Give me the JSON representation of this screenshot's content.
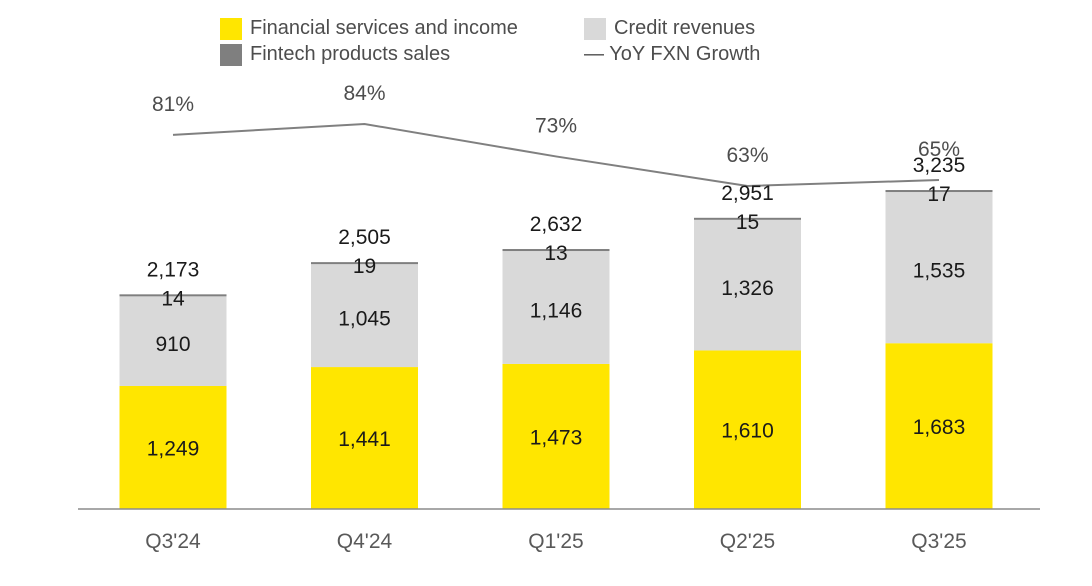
{
  "chart_data": {
    "type": "bar",
    "stacked": true,
    "categories": [
      "Q3'24",
      "Q4'24",
      "Q1'25",
      "Q2'25",
      "Q3'25"
    ],
    "series": [
      {
        "name": "Financial services and income",
        "values": [
          1249,
          1441,
          1473,
          1610,
          1683
        ],
        "labels": [
          "1,249",
          "1,441",
          "1,473",
          "1,610",
          "1,683"
        ],
        "color": "#FFE600"
      },
      {
        "name": "Credit revenues",
        "values": [
          910,
          1045,
          1146,
          1326,
          1535
        ],
        "labels": [
          "910",
          "1,045",
          "1,146",
          "1,326",
          "1,535"
        ],
        "color": "#D9D9D9"
      },
      {
        "name": "Fintech products sales",
        "values": [
          14,
          19,
          13,
          15,
          17
        ],
        "labels": [
          "14",
          "19",
          "13",
          "15",
          "17"
        ],
        "color": "#7F7F7F"
      }
    ],
    "totals": [
      2173,
      2505,
      2632,
      2951,
      3235
    ],
    "total_labels": [
      "2,173",
      "2,505",
      "2,632",
      "2,951",
      "3,235"
    ],
    "line_series": {
      "name": "YoY FXN Growth",
      "values": [
        81,
        84,
        73,
        63,
        65
      ],
      "labels": [
        "81%",
        "84%",
        "73%",
        "63%",
        "65%"
      ],
      "color": "#808080"
    },
    "legend": [
      {
        "label": "Financial services and income",
        "kind": "swatch",
        "color": "#FFE600"
      },
      {
        "label": "Credit revenues",
        "kind": "swatch",
        "color": "#D9D9D9"
      },
      {
        "label": "Fintech products sales",
        "kind": "swatch",
        "color": "#7F7F7F"
      },
      {
        "label": "— YoY FXN Growth",
        "kind": "line",
        "color": "#808080"
      }
    ],
    "title": "",
    "xlabel": "",
    "ylabel": "",
    "ylim": [
      0,
      3600
    ],
    "legend_position": "top-center",
    "grid": false
  }
}
